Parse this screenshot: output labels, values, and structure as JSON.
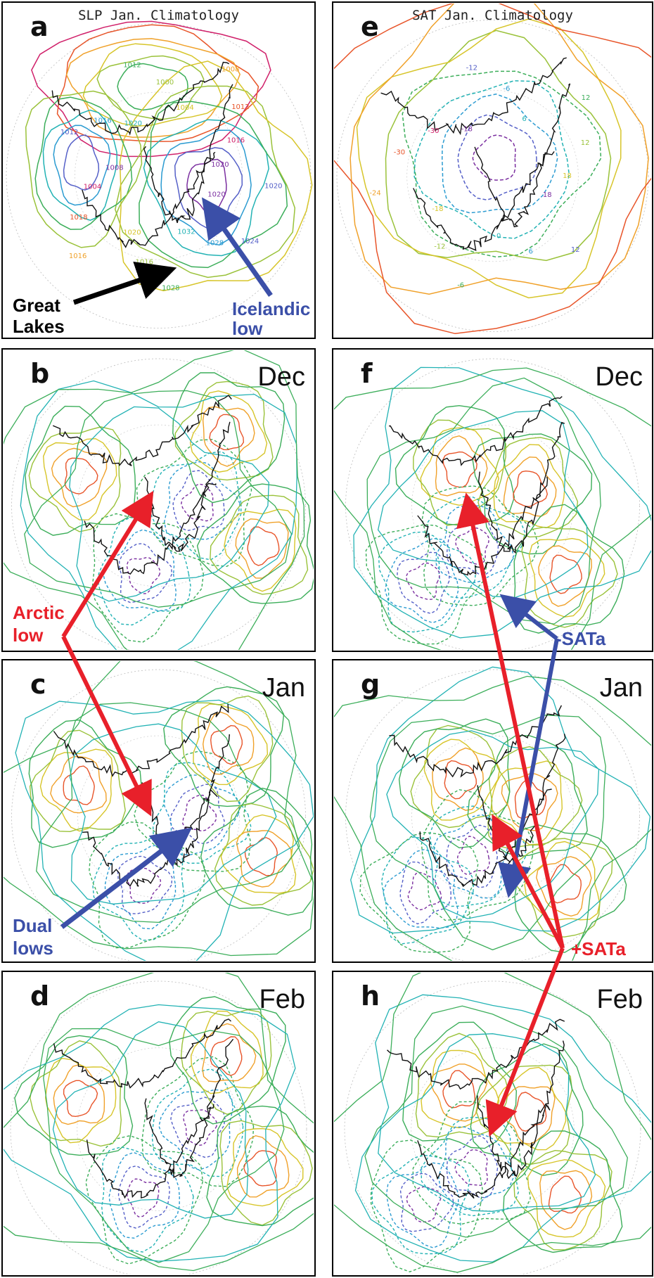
{
  "panels": [
    {
      "letter": "a",
      "title": "SLP Jan. Climatology",
      "month": "",
      "field": "slp_clim"
    },
    {
      "letter": "e",
      "title": "SAT Jan. Climatology",
      "month": "",
      "field": "sat_clim"
    },
    {
      "letter": "b",
      "title": "",
      "month": "Dec",
      "field": "slp_anom"
    },
    {
      "letter": "f",
      "title": "",
      "month": "Dec",
      "field": "sat_anom"
    },
    {
      "letter": "c",
      "title": "",
      "month": "Jan",
      "field": "slp_anom"
    },
    {
      "letter": "g",
      "title": "",
      "month": "Jan",
      "field": "sat_anom"
    },
    {
      "letter": "d",
      "title": "",
      "month": "Feb",
      "field": "slp_anom"
    },
    {
      "letter": "h",
      "title": "",
      "month": "Feb",
      "field": "sat_anom"
    }
  ],
  "annotations": {
    "great_lakes": "Great\nLakes",
    "icelandic_low": "Icelandic\nlow",
    "arctic_low": "Arctic\nlow",
    "dual_lows": "Dual\nlows",
    "neg_sata": "-SATa",
    "pos_sata": "+SATa"
  },
  "contour_labels": {
    "slp_clim": [
      "1020",
      "1024",
      "1028",
      "1032",
      "1028",
      "1016",
      "1020",
      "1016",
      "1018",
      "1004",
      "1008",
      "1012",
      "1016",
      "1020",
      "1012",
      "1000",
      "1004",
      "1008",
      "1012",
      "1016",
      "1020",
      "1020"
    ],
    "sat_clim": [
      "18",
      "12",
      "6",
      "0",
      "-6",
      "-12",
      "-18",
      "-24",
      "-30",
      "-30",
      "-18",
      "-12",
      "-6",
      "6",
      "12",
      "12",
      "18"
    ]
  },
  "colors": {
    "annot_red": "#e8202a",
    "annot_blue": "#3b4fa8",
    "annot_black": "#000000",
    "contour_scale": [
      "#7b2fa0",
      "#5560c8",
      "#2b9bd1",
      "#22b2b4",
      "#3cae5a",
      "#9ac23a",
      "#d7c52a",
      "#f0a12a",
      "#e8552a",
      "#d0206a"
    ]
  }
}
